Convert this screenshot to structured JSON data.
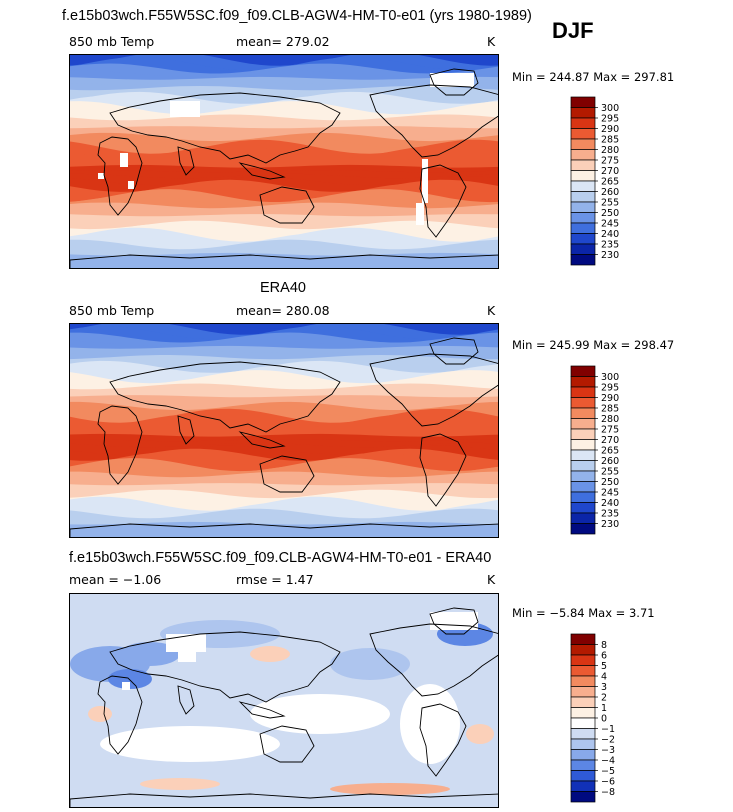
{
  "season": "DJF",
  "panels": [
    {
      "title": "f.e15b03wch.F55W5SC.f09_f09.CLB-AGW4-HM-T0-e01 (yrs 1980-1989)",
      "left_label": "850 mb Temp",
      "center_label": "mean= 279.02",
      "unit": "K",
      "minmax": "Min = 244.87 Max = 297.81",
      "kind": "abs",
      "missing": true
    },
    {
      "title": "ERA40",
      "left_label": "850 mb Temp",
      "center_label": "mean= 280.08",
      "unit": "K",
      "minmax": "Min = 245.99 Max = 298.47",
      "kind": "abs",
      "missing": false
    },
    {
      "title": "f.e15b03wch.F55W5SC.f09_f09.CLB-AGW4-HM-T0-e01 - ERA40",
      "left_label": "mean = −1.06",
      "center_label": "rmse =  1.47",
      "unit": "K",
      "minmax": "Min = −5.84 Max =  3.71",
      "kind": "diff",
      "missing": true
    }
  ],
  "colorbars": {
    "abs": {
      "labels": [
        "300",
        "295",
        "290",
        "285",
        "280",
        "275",
        "270",
        "265",
        "260",
        "255",
        "250",
        "245",
        "240",
        "235",
        "230"
      ],
      "colors": [
        "#800000",
        "#b31a00",
        "#d93514",
        "#eb5a32",
        "#f28a5f",
        "#f7ae8e",
        "#fbd0b9",
        "#fdf1e4",
        "#dbe6f5",
        "#b9cfee",
        "#93b3ea",
        "#6a93e6",
        "#3f6fde",
        "#1f47cc",
        "#0b25a8",
        "#000a80"
      ]
    },
    "diff": {
      "labels": [
        "8",
        "6",
        "5",
        "4",
        "3",
        "2",
        "1",
        "0",
        "−1",
        "−2",
        "−3",
        "−4",
        "−5",
        "−6",
        "−8"
      ],
      "colors": [
        "#800000",
        "#b31a00",
        "#d93514",
        "#eb5a32",
        "#f28a5f",
        "#f7ae8e",
        "#fbd0b9",
        "#fdf1e4",
        "#ffffff",
        "#cfdcf2",
        "#aec5ee",
        "#88a9ea",
        "#5c86e4",
        "#2f5ad7",
        "#1131b8",
        "#000a80"
      ]
    }
  },
  "chart_data": [
    {
      "type": "heatmap",
      "title": "f.e15b03wch.F55W5SC.f09_f09.CLB-AGW4-HM-T0-e01 (yrs 1980-1989)",
      "variable": "850 mb Temp",
      "units": "K",
      "season": "DJF",
      "mean": 279.02,
      "min": 244.87,
      "max": 297.81,
      "contour_levels": [
        230,
        235,
        240,
        245,
        250,
        255,
        260,
        265,
        270,
        275,
        280,
        285,
        290,
        295,
        300
      ],
      "missing_values_shown": true
    },
    {
      "type": "heatmap",
      "title": "ERA40",
      "variable": "850 mb Temp",
      "units": "K",
      "season": "DJF",
      "mean": 280.08,
      "min": 245.99,
      "max": 298.47,
      "contour_levels": [
        230,
        235,
        240,
        245,
        250,
        255,
        260,
        265,
        270,
        275,
        280,
        285,
        290,
        295,
        300
      ]
    },
    {
      "type": "heatmap",
      "title": "f.e15b03wch.F55W5SC.f09_f09.CLB-AGW4-HM-T0-e01 - ERA40",
      "units": "K",
      "season": "DJF",
      "mean": -1.06,
      "rmse": 1.47,
      "min": -5.84,
      "max": 3.71,
      "contour_levels": [
        -8,
        -6,
        -5,
        -4,
        -3,
        -2,
        -1,
        0,
        1,
        2,
        3,
        4,
        5,
        6,
        8
      ],
      "missing_values_shown": true
    }
  ]
}
